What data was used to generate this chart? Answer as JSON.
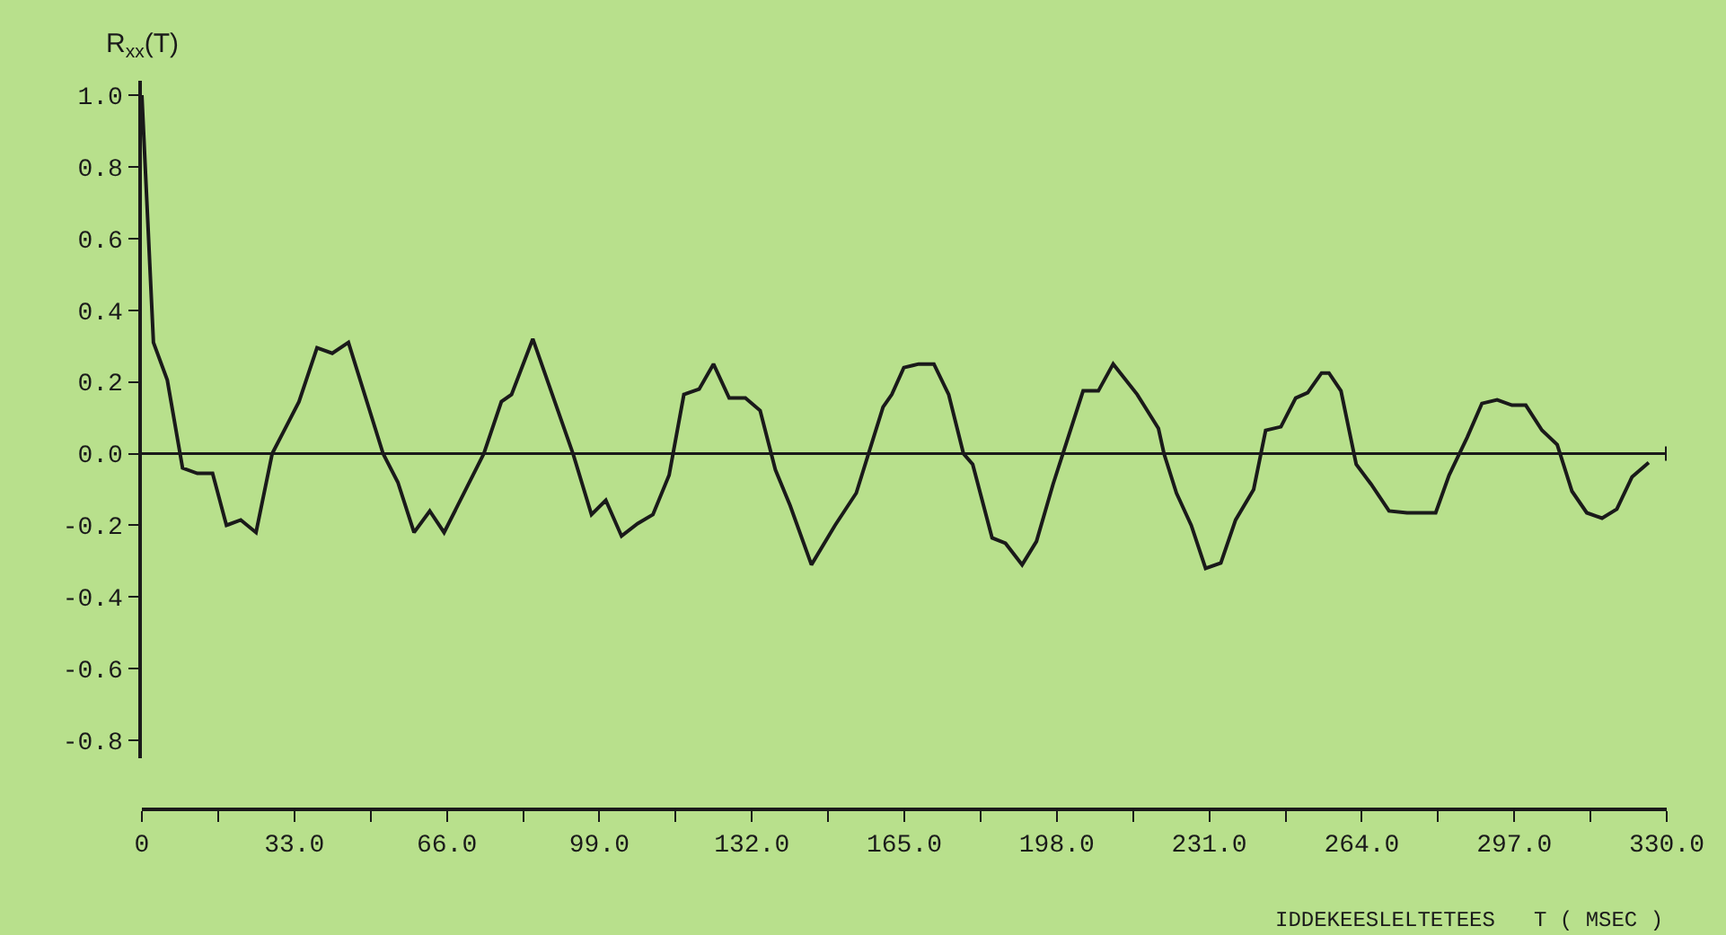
{
  "chart_data": {
    "type": "line",
    "xlabel": "IDDEKEESLELTETEES   T ( MSEC )",
    "ylabel": "R$_{xx}$(T)",
    "xlim": [
      0,
      330
    ],
    "xticks": [
      {
        "value": 0,
        "label": "0"
      },
      {
        "value": 33,
        "label": "33.0"
      },
      {
        "value": 66,
        "label": "66.0"
      },
      {
        "value": 99,
        "label": "99.0"
      },
      {
        "value": 132,
        "label": "132.0"
      },
      {
        "value": 165,
        "label": "165.0"
      },
      {
        "value": 198,
        "label": "198.0"
      },
      {
        "value": 231,
        "label": "231.0"
      },
      {
        "value": 264,
        "label": "264.0"
      },
      {
        "value": 297,
        "label": "297.0"
      },
      {
        "value": 330,
        "label": "330.0"
      }
    ],
    "ylim": [
      -0.85,
      1.04
    ],
    "yticks": [
      {
        "value": 1,
        "label": "1.0"
      },
      {
        "value": 0.8,
        "label": "0.8"
      },
      {
        "value": 0.6,
        "label": "0.6"
      },
      {
        "value": 0.4,
        "label": "0.4"
      },
      {
        "value": 0.2,
        "label": "0.2"
      },
      {
        "value": 0,
        "label": "0.0"
      },
      {
        "value": -0.2,
        "label": "-0.2"
      },
      {
        "value": -0.4,
        "label": "-0.4"
      },
      {
        "value": -0.6,
        "label": "-0.6"
      },
      {
        "value": -0.8,
        "label": "-0.8"
      }
    ],
    "grid": false,
    "marker": "none",
    "line_style": "solid",
    "ref_lines": [
      {
        "axis": "y",
        "value": 0,
        "color": "#1a1a1a"
      }
    ],
    "series": [
      {
        "color": "#1a1a1a",
        "x": [
          0,
          2.5,
          5.5,
          8.8,
          12,
          15.3,
          18.3,
          21.4,
          24.7,
          28.2,
          30.8,
          34,
          37.9,
          41.2,
          44.7,
          52.2,
          55.4,
          58.9,
          62.3,
          65.4,
          74,
          77.8,
          80,
          84.6,
          93.3,
          97.3,
          100.4,
          103.8,
          107.3,
          110.6,
          114.1,
          117.3,
          120.6,
          123.7,
          127.1,
          130.6,
          133.8,
          137.1,
          140.3,
          144.9,
          150,
          154.6,
          160.4,
          162.3,
          164.9,
          168.1,
          171.4,
          174.6,
          177.8,
          179.8,
          184,
          186.9,
          190.5,
          193.6,
          197.2,
          203.7,
          207,
          210.2,
          215.4,
          220,
          221.2,
          223.9,
          227.1,
          230.2,
          233.5,
          236.7,
          240.6,
          243.2,
          246.5,
          249.7,
          252.3,
          255.3,
          256.9,
          259.5,
          262.8,
          266,
          269.9,
          273.8,
          280,
          282.9,
          286.8,
          290,
          293.3,
          296.5,
          299.5,
          303,
          306.3,
          309.5,
          312.7,
          316,
          319.2,
          322.5,
          326.1
        ],
        "values": [
          1.0,
          0.31,
          0.205,
          -0.04,
          -0.055,
          -0.055,
          -0.2,
          -0.185,
          -0.22,
          0,
          0.065,
          0.145,
          0.295,
          0.28,
          0.31,
          0,
          -0.08,
          -0.22,
          -0.16,
          -0.22,
          0,
          0.145,
          0.165,
          0.32,
          0,
          -0.17,
          -0.13,
          -0.23,
          -0.195,
          -0.17,
          -0.06,
          0.165,
          0.18,
          0.25,
          0.155,
          0.155,
          0.12,
          -0.045,
          -0.145,
          -0.31,
          -0.2,
          -0.11,
          0.13,
          0.165,
          0.24,
          0.25,
          0.25,
          0.165,
          0,
          -0.03,
          -0.235,
          -0.25,
          -0.31,
          -0.245,
          -0.085,
          0.175,
          0.175,
          0.25,
          0.165,
          0.07,
          0,
          -0.11,
          -0.2,
          -0.32,
          -0.305,
          -0.185,
          -0.1,
          0.065,
          0.075,
          0.155,
          0.17,
          0.225,
          0.225,
          0.175,
          -0.03,
          -0.085,
          -0.16,
          -0.165,
          -0.165,
          -0.06,
          0.045,
          0.14,
          0.15,
          0.135,
          0.135,
          0.065,
          0.025,
          -0.105,
          -0.165,
          -0.18,
          -0.155,
          -0.065,
          -0.025
        ]
      }
    ]
  }
}
